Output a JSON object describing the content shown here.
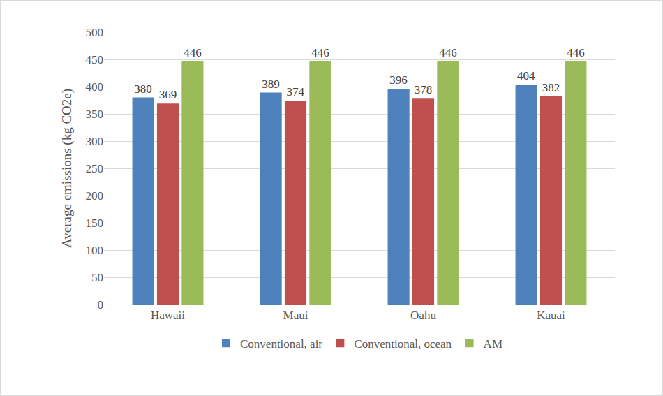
{
  "chart_data": {
    "type": "bar",
    "y_label": "Average emissions (kg CO2e)",
    "categories": [
      "Hawaii",
      "Maui",
      "Oahu",
      "Kauai"
    ],
    "series": [
      {
        "name": "Conventional, air",
        "color": "#4f81bd",
        "values": [
          380,
          389,
          396,
          404
        ]
      },
      {
        "name": "Conventional, ocean",
        "color": "#c0504d",
        "values": [
          369,
          374,
          378,
          382
        ]
      },
      {
        "name": "AM",
        "color": "#9bbb59",
        "values": [
          446,
          446,
          446,
          446
        ]
      }
    ],
    "ylim": [
      0,
      500
    ],
    "yticks": [
      0,
      50,
      100,
      150,
      200,
      250,
      300,
      350,
      400,
      450,
      500
    ],
    "grid": true,
    "data_labels": true,
    "legend": "bottom"
  }
}
